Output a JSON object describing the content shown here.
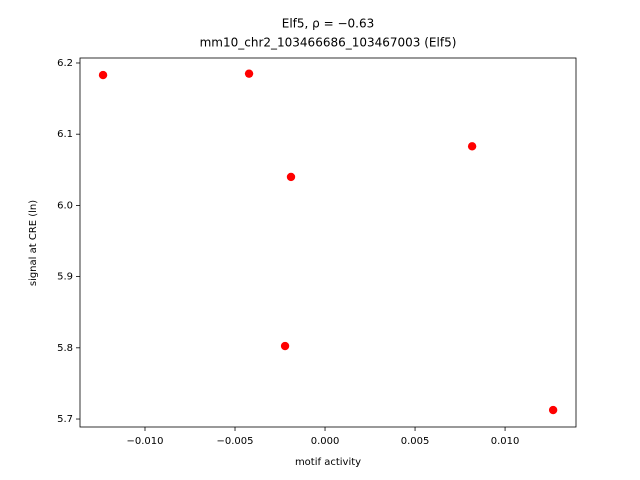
{
  "chart_data": {
    "type": "scatter",
    "title": "Elf5, ρ = −0.63",
    "subtitle": "mm10_chr2_103466686_103467003 (Elf5)",
    "x_label": "motif activity",
    "y_label": "signal at CRE (ln)",
    "color": "#ff0000",
    "x": [
      -0.01233,
      -0.00422,
      -0.00189,
      0.00817,
      -0.00222,
      0.01267
    ],
    "values": [
      6.183,
      6.185,
      6.04,
      6.083,
      5.8025,
      5.7126
    ],
    "xlim": [
      -0.01361,
      0.01394
    ],
    "ylim": [
      5.6888,
      6.207
    ],
    "xticks": [
      {
        "value": -0.01,
        "label": "−0.010"
      },
      {
        "value": -0.005,
        "label": "−0.005"
      },
      {
        "value": 0,
        "label": "0.000"
      },
      {
        "value": 0.005,
        "label": "0.005"
      },
      {
        "value": 0.01,
        "label": "0.010"
      }
    ],
    "yticks": [
      5.7,
      5.8,
      5.9,
      {
        "value": 6.0,
        "label": "6.0"
      },
      6.1,
      6.2
    ],
    "grid": false
  }
}
